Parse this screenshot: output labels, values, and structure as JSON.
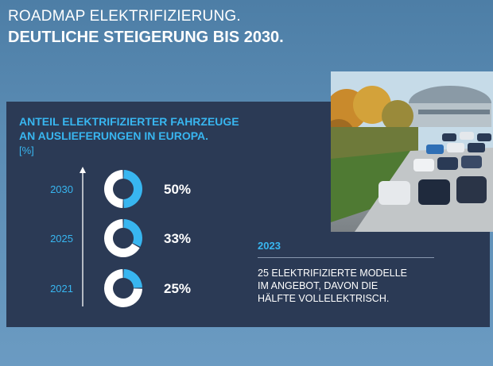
{
  "header": {
    "title": "ROADMAP ELEKTRIFIZIERUNG.",
    "subtitle": "DEUTLICHE STEIGERUNG BIS 2030."
  },
  "chart_data": {
    "type": "pie",
    "title_line1": "ANTEIL ELEKTRIFIZIERTER FAHRZEUGE",
    "title_line2": "AN AUSLIEFERUNGEN IN EUROPA.",
    "unit": "[%]",
    "categories": [
      "2030",
      "2025",
      "2021"
    ],
    "values": [
      50,
      33,
      25
    ],
    "value_labels": [
      "50%",
      "33%",
      "25%"
    ],
    "colors": {
      "highlight": "#38b6f0",
      "rest": "#ffffff"
    }
  },
  "info": {
    "year": "2023",
    "text_line1": "25 ELEKTRIFIZIERTE MODELLE",
    "text_line2": "IM ANGEBOT, DAVON DIE",
    "text_line3": "HÄLFTE VOLLELEKTRISCH."
  },
  "image": {
    "subject": "parked-cars-photo"
  }
}
